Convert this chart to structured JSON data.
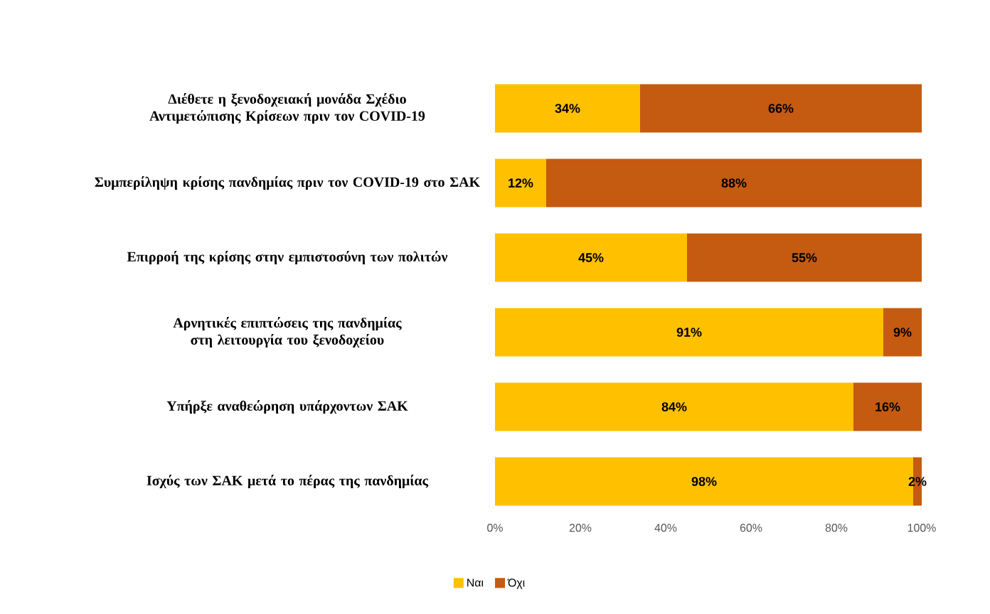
{
  "chart_data": {
    "type": "bar",
    "orientation": "horizontal",
    "stacked": true,
    "categories": [
      "Διέθετε η ξενοδοχειακή μονάδα Σχέδιο Αντιμετώπισης Κρίσεων πριν τον COVID-19",
      "Συμπερίληψη κρίσης πανδημίας πριν τον COVID-19 στο ΣΑΚ",
      "Επιρροή της κρίσης στην εμπιστοσύνη των πολιτών",
      "Αρνητικές επιπτώσεις της πανδημίας στη λειτουργία του ξενοδοχείου",
      "Υπήρξε αναθεώρηση υπάρχοντων ΣΑΚ",
      "Ισχύς των ΣΑΚ μετά το πέρας της πανδημίας"
    ],
    "series": [
      {
        "name": "Ναι",
        "color": "#ffc000",
        "values": [
          34,
          12,
          45,
          91,
          84,
          98
        ],
        "value_labels": [
          "34%",
          "12%",
          "45%",
          "91%",
          "84%",
          "98%"
        ]
      },
      {
        "name": "Όχι",
        "color": "#c55a11",
        "values": [
          66,
          88,
          55,
          9,
          16,
          2
        ],
        "value_labels": [
          "66%",
          "88%",
          "55%",
          "9%",
          "16%",
          "2%"
        ]
      }
    ],
    "xlim": [
      0,
      100
    ],
    "xticks": [
      {
        "value": 0,
        "label": "0%"
      },
      {
        "value": 20,
        "label": "20%"
      },
      {
        "value": 40,
        "label": "40%"
      },
      {
        "value": 60,
        "label": "60%"
      },
      {
        "value": 80,
        "label": "80%"
      },
      {
        "value": 100,
        "label": "100%"
      }
    ],
    "grid": false,
    "legend": "bottom"
  }
}
